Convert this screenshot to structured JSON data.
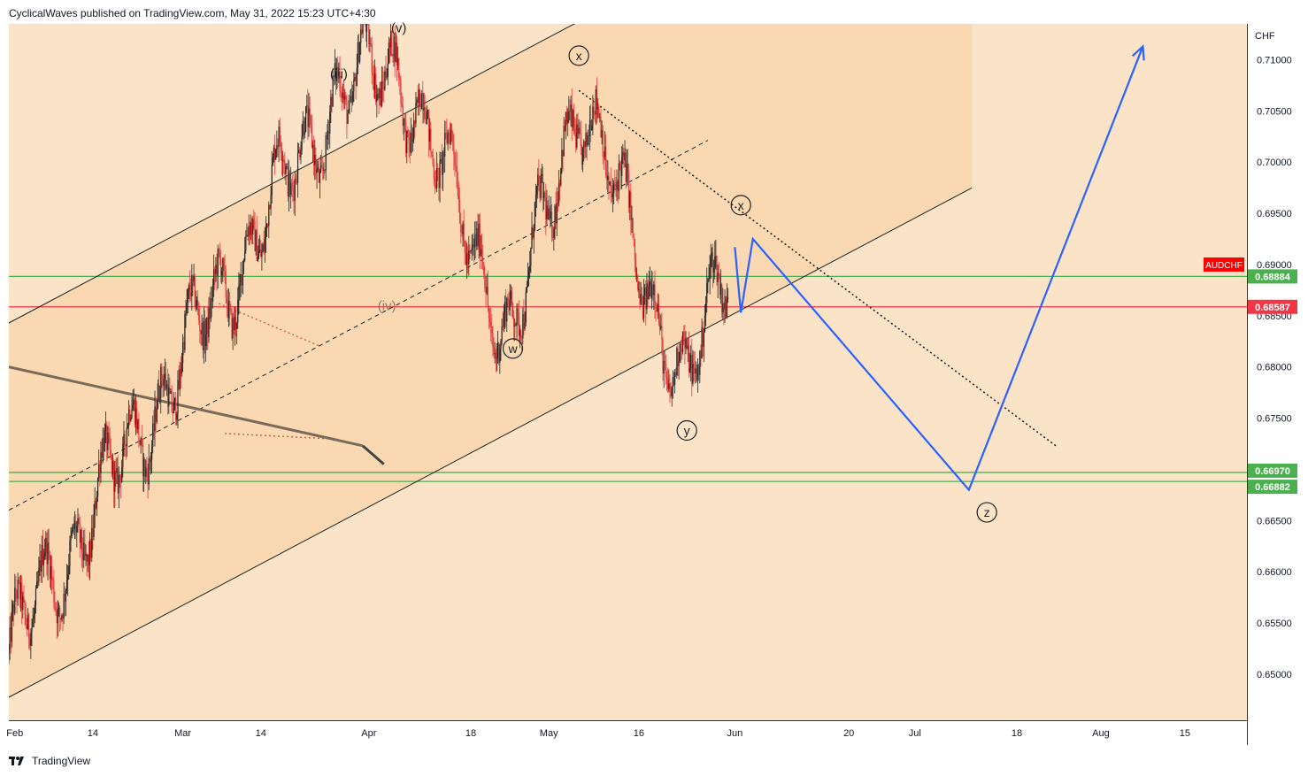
{
  "header": {
    "publisher_line": "CyclicalWaves published on TradingView.com, May 31, 2022 15:23 UTC+4:30"
  },
  "footer": {
    "brand": "TradingView",
    "logo_icon": "tradingview-logo-icon"
  },
  "colors": {
    "background": "#fbe3c8",
    "channel_fill": "#fad9b2",
    "bull_candle": "#222222",
    "bear_candle": "#e03a3a",
    "projection": "#2962ff",
    "green_level": "#4caf50",
    "red_level": "#f23645",
    "symbol_badge": "#ff0000"
  },
  "chart_data": {
    "type": "candlestick",
    "symbol": "AUDCHF",
    "currency_label": "CHF",
    "y_axis": {
      "ylim": [
        0.6455,
        0.7135
      ],
      "ticks": [
        "0.71000",
        "0.70500",
        "0.70000",
        "0.69500",
        "0.69000",
        "0.68500",
        "0.68000",
        "0.67500",
        "0.67000",
        "0.66500",
        "0.66000",
        "0.65500",
        "0.65000"
      ]
    },
    "x_axis": {
      "ticks": [
        "Feb",
        "14",
        "Mar",
        "14",
        "Apr",
        "18",
        "May",
        "16",
        "Jun",
        "20",
        "Jul",
        "18",
        "Aug",
        "15"
      ]
    },
    "price_levels": [
      {
        "label": "0.68884",
        "value": 0.68884,
        "color": "#4caf50"
      },
      {
        "label": "0.68587",
        "value": 0.68587,
        "color": "#f23645"
      },
      {
        "label": "0.66970",
        "value": 0.6697,
        "color": "#4caf50"
      },
      {
        "label": "0.66882",
        "value": 0.66882,
        "color": "#4caf50"
      }
    ],
    "symbol_badge": "AUDCHF",
    "wave_labels": [
      {
        "text": "(iii)",
        "date": "2022-03-27",
        "price": 0.7086
      },
      {
        "text": "(v)",
        "date": "2022-04-06",
        "price": 0.7131
      },
      {
        "text": "(iv)",
        "date": "2022-04-04",
        "price": 0.686
      },
      {
        "text": "x",
        "date": "2022-05-06",
        "price": 0.7104
      },
      {
        "text": "w",
        "date": "2022-04-25",
        "price": 0.6818
      },
      {
        "text": "x",
        "date": "2022-06-02",
        "price": 0.6958
      },
      {
        "text": "y",
        "date": "2022-05-24",
        "price": 0.6738
      },
      {
        "text": "z",
        "date": "2022-07-13",
        "price": 0.6658
      }
    ],
    "key_points": [
      {
        "date": "2022-01-31",
        "price": 0.652
      },
      {
        "date": "2022-03-27",
        "price": 0.707
      },
      {
        "date": "2022-04-06",
        "price": 0.7095
      },
      {
        "date": "2022-04-25",
        "price": 0.6825
      },
      {
        "date": "2022-05-06",
        "price": 0.707
      },
      {
        "date": "2022-05-24",
        "price": 0.6775
      },
      {
        "date": "2022-05-31",
        "price": 0.691
      }
    ],
    "projection_path": [
      {
        "date": "2022-06-01",
        "price": 0.6917
      },
      {
        "date": "2022-06-02",
        "price": 0.6853
      },
      {
        "date": "2022-06-04",
        "price": 0.6925
      },
      {
        "date": "2022-07-10",
        "price": 0.668
      },
      {
        "date": "2022-08-08",
        "price": 0.7113
      }
    ]
  }
}
